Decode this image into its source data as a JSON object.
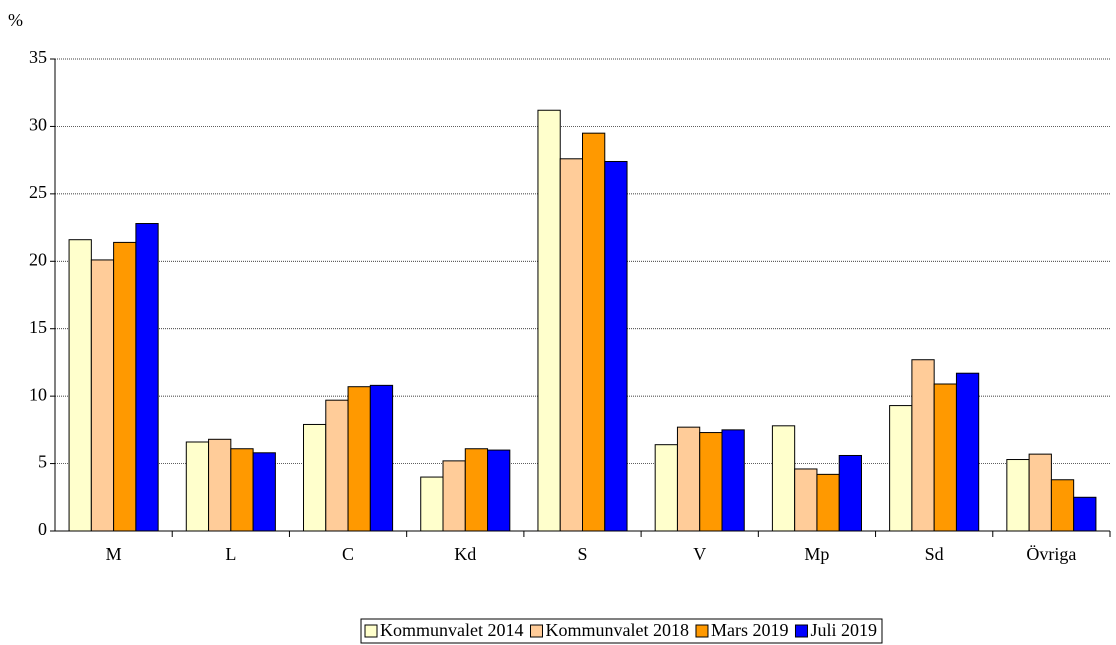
{
  "chart_data": {
    "type": "bar",
    "ylabel": "%",
    "categories": [
      "M",
      "L",
      "C",
      "Kd",
      "S",
      "V",
      "Mp",
      "Sd",
      "Övriga"
    ],
    "series": [
      {
        "name": "Kommunvalet 2014",
        "color": "#ffffcc",
        "values": [
          21.6,
          6.6,
          7.9,
          4.0,
          31.2,
          6.4,
          7.8,
          9.3,
          5.3
        ]
      },
      {
        "name": "Kommunvalet 2018",
        "color": "#ffcc99",
        "values": [
          20.1,
          6.8,
          9.7,
          5.2,
          27.6,
          7.7,
          4.6,
          12.7,
          5.7
        ]
      },
      {
        "name": "Mars 2019",
        "color": "#ff9900",
        "values": [
          21.4,
          6.1,
          10.7,
          6.1,
          29.5,
          7.3,
          4.2,
          10.9,
          3.8
        ]
      },
      {
        "name": "Juli 2019",
        "color": "#0000ff",
        "values": [
          22.8,
          5.8,
          10.8,
          6.0,
          27.4,
          7.5,
          5.6,
          11.7,
          2.5
        ]
      }
    ],
    "ylim": [
      0,
      35
    ],
    "yticks": [
      0,
      5,
      10,
      15,
      20,
      25,
      30,
      35
    ],
    "grid": true,
    "legend": "bottom"
  }
}
